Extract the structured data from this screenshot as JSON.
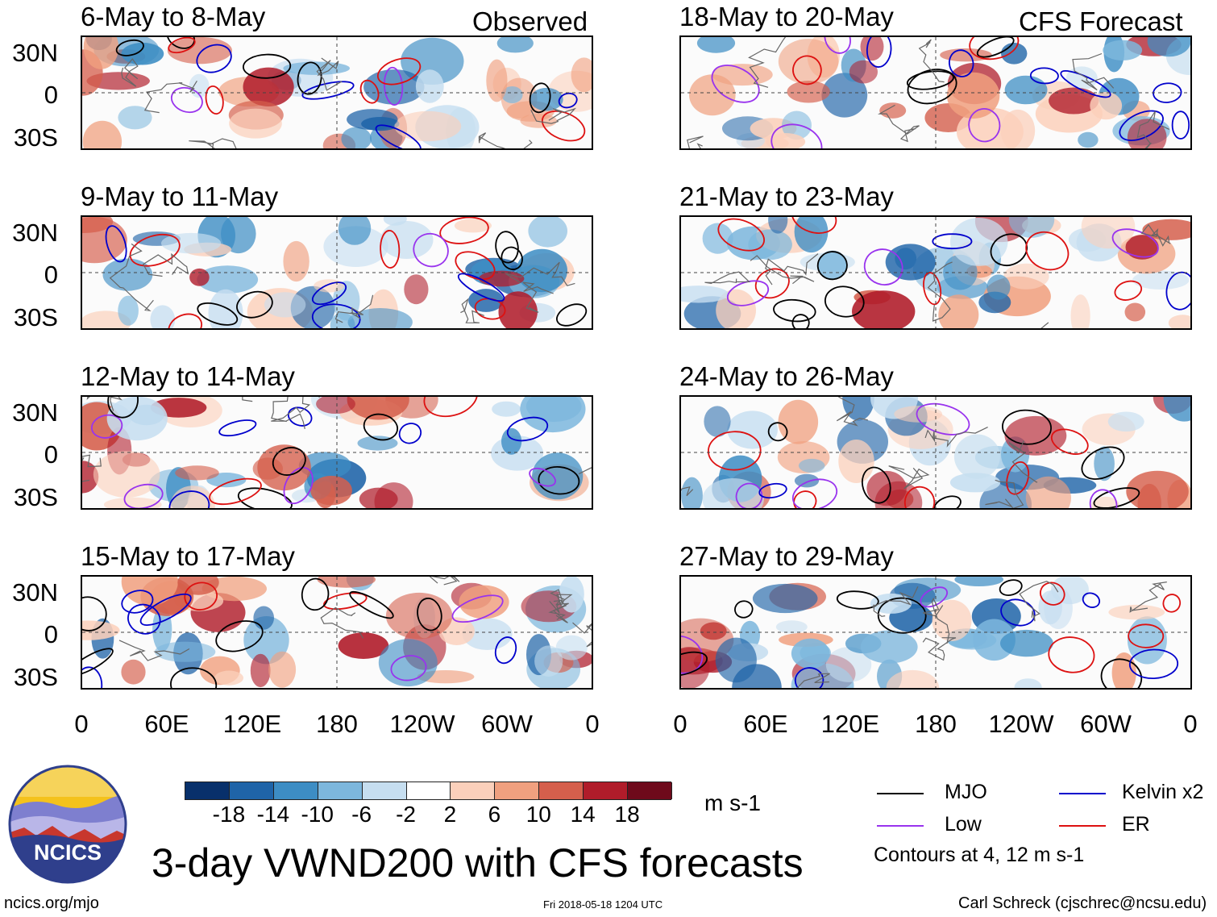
{
  "panels": [
    {
      "title": "6-May to 8-May",
      "corner": "Observed"
    },
    {
      "title": "9-May to 11-May",
      "corner": ""
    },
    {
      "title": "12-May to 14-May",
      "corner": ""
    },
    {
      "title": "15-May to 17-May",
      "corner": ""
    },
    {
      "title": "18-May to 20-May",
      "corner": "CFS Forecast"
    },
    {
      "title": "21-May to 23-May",
      "corner": ""
    },
    {
      "title": "24-May to 26-May",
      "corner": ""
    },
    {
      "title": "27-May to 29-May",
      "corner": ""
    }
  ],
  "lat_labels": [
    "30N",
    "0",
    "30S"
  ],
  "lon_labels": [
    "0",
    "60E",
    "120E",
    "180",
    "120W",
    "60W",
    "0"
  ],
  "colorbar": {
    "ticks": [
      "-18",
      "-14",
      "-10",
      "-6",
      "-2",
      "2",
      "6",
      "10",
      "14",
      "18"
    ],
    "units": "m s-1",
    "colors": [
      "#08306b",
      "#1f64a8",
      "#3d8dc4",
      "#7db7dd",
      "#c6def0",
      "#ffffff",
      "#fbd0bb",
      "#f0a07f",
      "#d55f4c",
      "#b01c2a",
      "#6e0a1b"
    ]
  },
  "legend": {
    "mjo": "MJO",
    "kelvin": "Kelvin x2",
    "low": "Low",
    "er": "ER",
    "note": "Contours at 4, 12 m s-1",
    "colors": {
      "mjo": "#000000",
      "kelvin": "#0000cc",
      "low": "#9933ee",
      "er": "#dd1111"
    }
  },
  "title": "3-day VWND200 with CFS forecasts",
  "logo_text": "NCICS",
  "footer": {
    "url": "ncics.org/mjo",
    "timestamp": "Fri 2018-05-18 1204 UTC",
    "credit": "Carl Schreck (cjschrec@ncsu.edu)"
  }
}
